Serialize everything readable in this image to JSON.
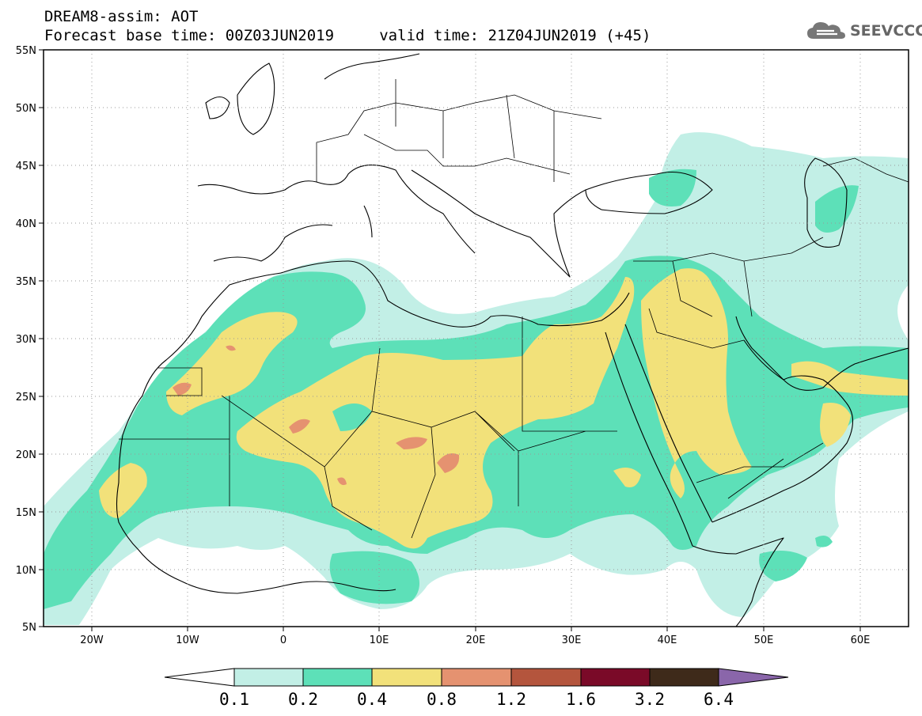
{
  "header": {
    "title": "DREAM8-assim: AOT",
    "subtitle": "Forecast base time: 00Z03JUN2019     valid time: 21Z04JUN2019 (+45)",
    "logo_text": "SEEVCCC",
    "logo_icon": "cloud-icon"
  },
  "map": {
    "lon_range": [
      -25,
      65
    ],
    "lat_range": [
      5,
      55
    ],
    "lat_ticks": [
      "55N",
      "50N",
      "45N",
      "40N",
      "35N",
      "30N",
      "25N",
      "20N",
      "15N",
      "10N",
      "5N"
    ],
    "lon_ticks": [
      "20W",
      "10W",
      "0",
      "10E",
      "20E",
      "30E",
      "40E",
      "50E",
      "60E"
    ],
    "grid": true,
    "gridline_style": "dotted"
  },
  "colorbar": {
    "labels": [
      "0.1",
      "0.2",
      "0.4",
      "0.8",
      "1.2",
      "1.6",
      "3.2",
      "6.4"
    ],
    "colors": [
      "#ffffff",
      "#c2efe6",
      "#5de0b8",
      "#f2e17a",
      "#e59270",
      "#b4553d",
      "#7a0a28",
      "#3e2a1a",
      "#8a66aa"
    ]
  },
  "legend_colors": {
    "level_0_1": "#c2efe6",
    "level_0_2": "#5de0b8",
    "level_0_4": "#f2e17a",
    "level_0_8": "#e59270"
  }
}
